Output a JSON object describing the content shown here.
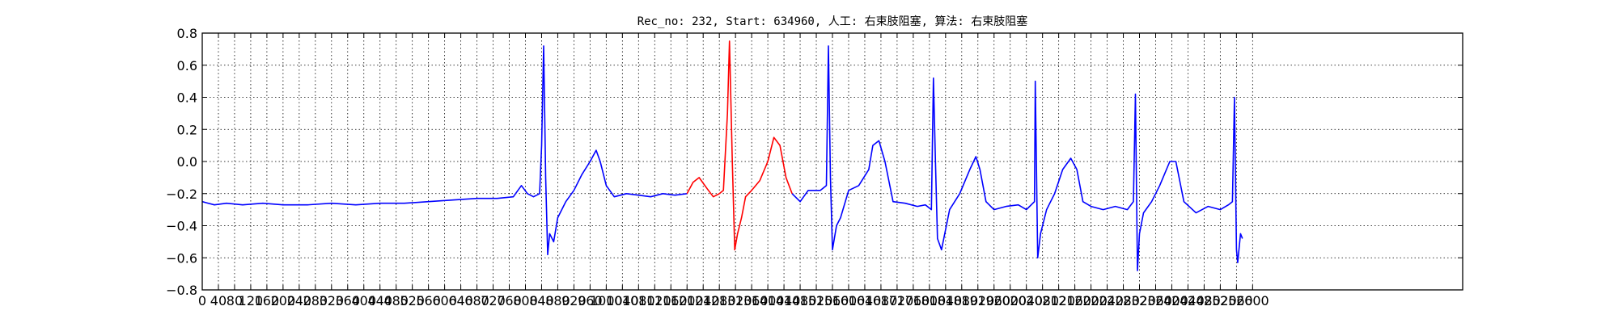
{
  "chart_data": {
    "type": "line",
    "title": "Rec_no: 232, Start: 634960, 人工: 右束肢阻塞, 算法: 右束肢阻塞",
    "xlabel": "",
    "ylabel": "",
    "xlim": [
      0,
      3120
    ],
    "ylim": [
      -0.8,
      0.8
    ],
    "grid": true,
    "x_ticks": [
      0,
      40,
      80,
      120,
      160,
      200,
      240,
      280,
      320,
      360,
      400,
      440,
      480,
      520,
      560,
      600,
      640,
      680,
      720,
      760,
      800,
      840,
      880,
      920,
      960,
      1000,
      1040,
      1080,
      1120,
      1160,
      1200,
      1240,
      1280,
      1320,
      1360,
      1400,
      1440,
      1480,
      1520,
      1560,
      1600,
      1640,
      1680,
      1720,
      1760,
      1800,
      1840,
      1880,
      1920,
      1960,
      2000,
      2040,
      2080,
      2120,
      2160,
      2200,
      2240,
      2280,
      2320,
      2360,
      2400,
      2440,
      2480,
      2520,
      2560,
      2600
    ],
    "y_ticks": [
      -0.8,
      -0.6,
      -0.4,
      -0.2,
      0.0,
      0.2,
      0.4,
      0.6,
      0.8
    ],
    "y_tick_labels": [
      "−0.8",
      "−0.6",
      "−0.4",
      "−0.2",
      "0.0",
      "0.2",
      "0.4",
      "0.6",
      "0.8"
    ],
    "series": [
      {
        "color": "#0000ff",
        "x": [
          0,
          30,
          60,
          100,
          150,
          200,
          260,
          320,
          380,
          440,
          500,
          560,
          620,
          680,
          730,
          770,
          790,
          805,
          820,
          835,
          840,
          845,
          850,
          855,
          860,
          870,
          880,
          900,
          920,
          940,
          960,
          975,
          985,
          1000,
          1020,
          1050,
          1080,
          1110,
          1140,
          1170,
          1200
        ],
        "y": [
          -0.25,
          -0.27,
          -0.26,
          -0.27,
          -0.26,
          -0.27,
          -0.27,
          -0.26,
          -0.27,
          -0.26,
          -0.26,
          -0.25,
          -0.24,
          -0.23,
          -0.23,
          -0.22,
          -0.15,
          -0.2,
          -0.22,
          -0.2,
          0.1,
          0.72,
          -0.1,
          -0.58,
          -0.45,
          -0.5,
          -0.35,
          -0.25,
          -0.18,
          -0.08,
          0.0,
          0.07,
          0.0,
          -0.15,
          -0.22,
          -0.2,
          -0.21,
          -0.22,
          -0.2,
          -0.21,
          -0.2
        ]
      },
      {
        "color": "#ff0000",
        "x": [
          1200,
          1215,
          1230,
          1250,
          1265,
          1280,
          1290,
          1300,
          1305,
          1312,
          1318,
          1325,
          1335,
          1345,
          1360,
          1380,
          1400,
          1415,
          1430,
          1445,
          1460
        ],
        "y": [
          -0.2,
          -0.13,
          -0.1,
          -0.17,
          -0.22,
          -0.2,
          -0.18,
          0.3,
          0.75,
          0.0,
          -0.55,
          -0.45,
          -0.35,
          -0.22,
          -0.18,
          -0.12,
          0.0,
          0.15,
          0.1,
          -0.1,
          -0.2
        ]
      },
      {
        "color": "#0000ff",
        "x": [
          1460,
          1480,
          1500,
          1530,
          1545,
          1550,
          1555,
          1560,
          1570,
          1580,
          1600,
          1625,
          1650,
          1660,
          1675,
          1690,
          1710,
          1740,
          1770,
          1790,
          1805,
          1810,
          1815,
          1820,
          1830,
          1850,
          1875,
          1900,
          1915,
          1925,
          1940,
          1960,
          1990,
          2020,
          2040,
          2060,
          2062,
          2068,
          2075,
          2090,
          2110,
          2130,
          2150,
          2165,
          2180,
          2200,
          2230,
          2260,
          2290,
          2305,
          2310,
          2315,
          2320,
          2330,
          2350,
          2370,
          2395,
          2410,
          2430,
          2460,
          2490,
          2520,
          2540,
          2550,
          2555,
          2560,
          2563,
          2570,
          2575
        ],
        "y": [
          -0.2,
          -0.25,
          -0.18,
          -0.18,
          -0.15,
          0.72,
          -0.1,
          -0.55,
          -0.4,
          -0.35,
          -0.18,
          -0.15,
          -0.05,
          0.1,
          0.13,
          0.0,
          -0.25,
          -0.26,
          -0.28,
          -0.27,
          -0.3,
          0.52,
          0.0,
          -0.48,
          -0.55,
          -0.3,
          -0.2,
          -0.05,
          0.03,
          -0.05,
          -0.25,
          -0.3,
          -0.28,
          -0.27,
          -0.3,
          -0.25,
          0.5,
          -0.6,
          -0.45,
          -0.3,
          -0.2,
          -0.05,
          0.02,
          -0.05,
          -0.25,
          -0.28,
          -0.3,
          -0.28,
          -0.3,
          -0.25,
          0.42,
          -0.68,
          -0.45,
          -0.32,
          -0.25,
          -0.15,
          0.0,
          0.0,
          -0.25,
          -0.32,
          -0.28,
          -0.3,
          -0.27,
          -0.25,
          0.4,
          -0.55,
          -0.63,
          -0.45,
          -0.48
        ]
      }
    ]
  }
}
